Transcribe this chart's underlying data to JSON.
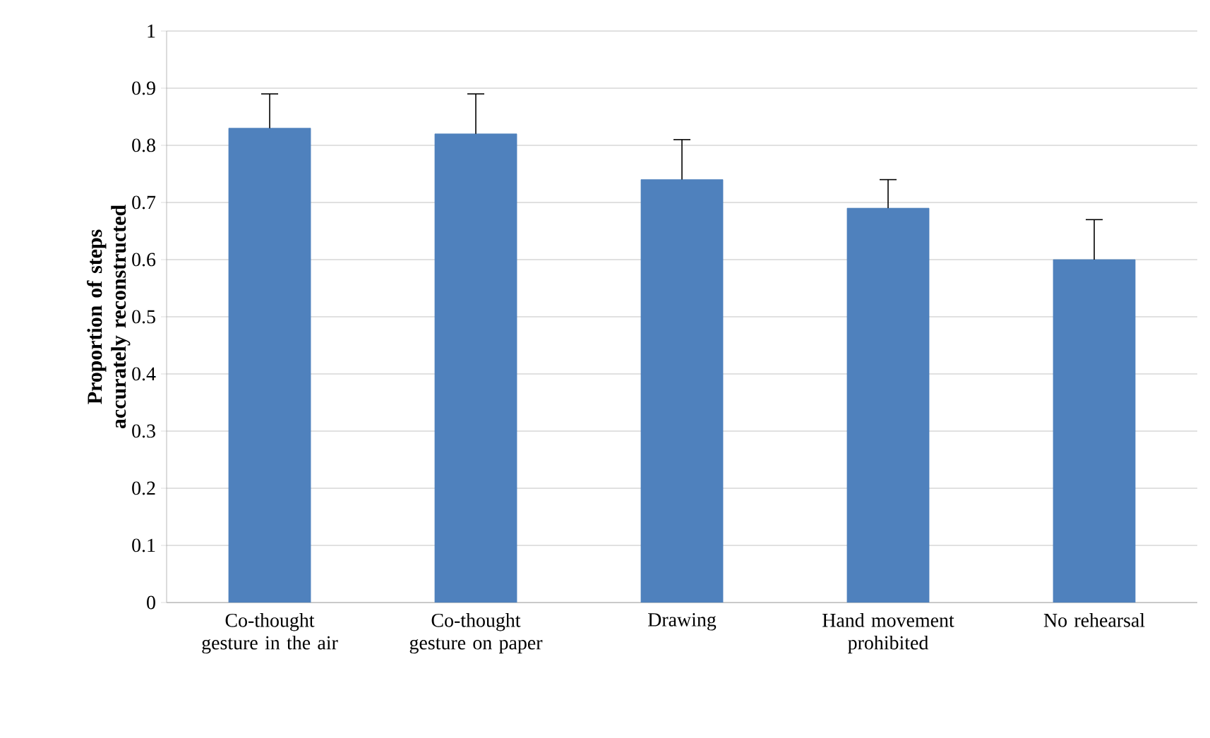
{
  "chart_data": {
    "type": "bar",
    "ylabel": "Proportion  of steps accurately reconstructed",
    "categories": [
      "Co-thought gesture in the air",
      "Co-thought gesture on paper",
      "Drawing",
      "Hand movement prohibited",
      "No rehearsal"
    ],
    "values": [
      0.83,
      0.82,
      0.74,
      0.69,
      0.6
    ],
    "errors": [
      [
        0.83,
        0.89
      ],
      [
        0.82,
        0.89
      ],
      [
        0.74,
        0.81
      ],
      [
        0.69,
        0.74
      ],
      [
        0.6,
        0.67
      ]
    ],
    "color": "#4f81bd",
    "ylim": [
      0,
      1
    ],
    "yticks": [
      0,
      0.1,
      0.2,
      0.3,
      0.4,
      0.5,
      0.6,
      0.7,
      0.8,
      0.9,
      1
    ],
    "grid": "y",
    "legend": false
  }
}
